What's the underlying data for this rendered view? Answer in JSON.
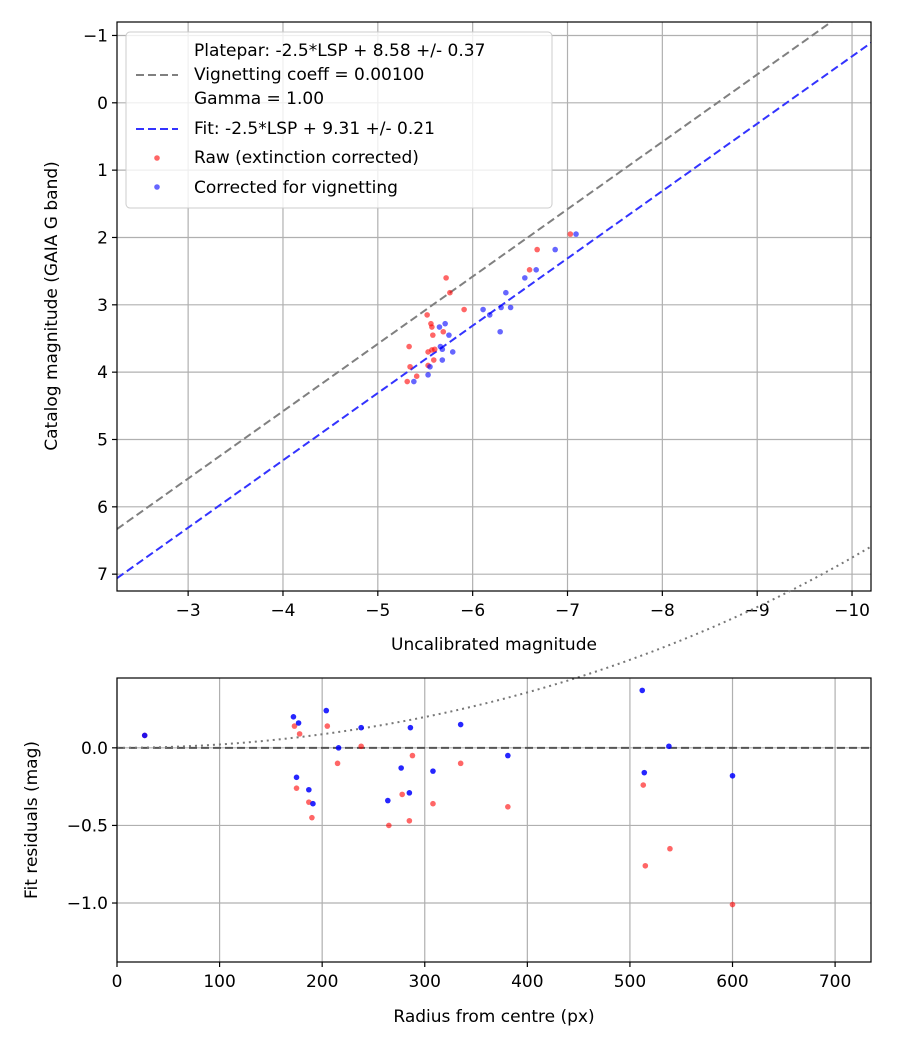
{
  "chart_data": [
    {
      "type": "scatter",
      "name": "magnitude-calibration",
      "xlabel": "Uncalibrated magnitude",
      "ylabel": "Catalog magnitude (GAIA G band)",
      "xlim": [
        -2.25,
        -10.2
      ],
      "ylim": [
        7.25,
        -1.2
      ],
      "x_inverted": true,
      "y_inverted": true,
      "grid": true,
      "xticks": [
        -3,
        -4,
        -5,
        -6,
        -7,
        -8,
        -9,
        -10
      ],
      "xtick_labels": [
        "−3",
        "−4",
        "−5",
        "−6",
        "−7",
        "−8",
        "−9",
        "−10"
      ],
      "yticks": [
        -1,
        0,
        1,
        2,
        3,
        4,
        5,
        6,
        7
      ],
      "ytick_labels": [
        "−1",
        "0",
        "1",
        "2",
        "3",
        "4",
        "5",
        "6",
        "7"
      ],
      "legend": {
        "position": "top-left",
        "entries": [
          {
            "label": "Platepar: -2.5*LSP + 8.58 +/- 0.37",
            "style": "none"
          },
          {
            "label": "Vignetting coeff = 0.00100",
            "style": "dashed-line",
            "color": "#808080"
          },
          {
            "label": "Gamma = 1.00",
            "style": "none"
          },
          {
            "label": "Fit: -2.5*LSP + 9.31 +/- 0.21",
            "style": "dashed-line",
            "color": "#3333ff"
          },
          {
            "label": "Raw (extinction corrected)",
            "style": "marker",
            "color": "#ff0000"
          },
          {
            "label": "Corrected for vignetting",
            "style": "marker",
            "color": "#0000ff"
          }
        ]
      },
      "lines": [
        {
          "name": "Platepar",
          "color": "#808080",
          "dash": "dashed",
          "slope": 1.0,
          "intercept": 8.58
        },
        {
          "name": "Fit",
          "color": "#3333ff",
          "dash": "dashed",
          "slope": 1.0,
          "intercept": 9.31
        }
      ],
      "series": [
        {
          "name": "Raw (extinction corrected)",
          "color": "#ff0000",
          "alpha": 0.6,
          "points": [
            {
              "x": -7.03,
              "y": 1.95
            },
            {
              "x": -6.68,
              "y": 2.18
            },
            {
              "x": -6.6,
              "y": 2.48
            },
            {
              "x": -5.72,
              "y": 2.6
            },
            {
              "x": -5.76,
              "y": 2.82
            },
            {
              "x": -5.91,
              "y": 3.07
            },
            {
              "x": -5.52,
              "y": 3.15
            },
            {
              "x": -5.56,
              "y": 3.28
            },
            {
              "x": -5.57,
              "y": 3.33
            },
            {
              "x": -5.69,
              "y": 3.4
            },
            {
              "x": -5.58,
              "y": 3.45
            },
            {
              "x": -5.33,
              "y": 3.62
            },
            {
              "x": -5.57,
              "y": 3.67
            },
            {
              "x": -5.6,
              "y": 3.66
            },
            {
              "x": -5.53,
              "y": 3.7
            },
            {
              "x": -5.59,
              "y": 3.82
            },
            {
              "x": -5.34,
              "y": 3.92
            },
            {
              "x": -5.53,
              "y": 3.9
            },
            {
              "x": -5.41,
              "y": 4.06
            },
            {
              "x": -5.31,
              "y": 4.14
            }
          ]
        },
        {
          "name": "Corrected for vignetting",
          "color": "#0000ff",
          "alpha": 0.6,
          "points": [
            {
              "x": -7.09,
              "y": 1.95
            },
            {
              "x": -6.87,
              "y": 2.18
            },
            {
              "x": -6.67,
              "y": 2.48
            },
            {
              "x": -6.55,
              "y": 2.6
            },
            {
              "x": -6.35,
              "y": 2.82
            },
            {
              "x": -6.11,
              "y": 3.07
            },
            {
              "x": -6.18,
              "y": 3.15
            },
            {
              "x": -6.3,
              "y": 3.04
            },
            {
              "x": -6.4,
              "y": 3.04
            },
            {
              "x": -5.71,
              "y": 3.28
            },
            {
              "x": -5.65,
              "y": 3.33
            },
            {
              "x": -6.29,
              "y": 3.4
            },
            {
              "x": -5.75,
              "y": 3.45
            },
            {
              "x": -5.66,
              "y": 3.62
            },
            {
              "x": -5.68,
              "y": 3.66
            },
            {
              "x": -5.79,
              "y": 3.7
            },
            {
              "x": -5.68,
              "y": 3.82
            },
            {
              "x": -5.55,
              "y": 3.92
            },
            {
              "x": -5.53,
              "y": 4.04
            },
            {
              "x": -5.38,
              "y": 4.14
            }
          ]
        }
      ]
    },
    {
      "type": "scatter",
      "name": "fit-residuals",
      "xlabel": "Radius from centre (px)",
      "ylabel": "Fit residuals (mag)",
      "xlim": [
        0,
        735
      ],
      "ylim": [
        -1.38,
        0.45
      ],
      "grid": true,
      "xticks": [
        0,
        100,
        200,
        300,
        400,
        500,
        600,
        700
      ],
      "xtick_labels": [
        "0",
        "100",
        "200",
        "300",
        "400",
        "500",
        "600",
        "700"
      ],
      "yticks": [
        0.0,
        -0.5,
        -1.0
      ],
      "ytick_labels": [
        "0.0",
        "−0.5",
        "−1.0"
      ],
      "lines": [
        {
          "name": "zero",
          "color": "#555555",
          "dash": "dashed",
          "formula": "y = 0"
        },
        {
          "name": "vignetting model",
          "color": "#777777",
          "dash": "dotted",
          "formula": "y = -2.5*log10(cos(0.001*r)^4)"
        }
      ],
      "series": [
        {
          "name": "Raw",
          "color": "#ff0000",
          "alpha": 0.6,
          "points": [
            {
              "x": 27,
              "y": 0.08
            },
            {
              "x": 173,
              "y": 0.14
            },
            {
              "x": 178,
              "y": 0.09
            },
            {
              "x": 175,
              "y": -0.26
            },
            {
              "x": 187,
              "y": -0.35
            },
            {
              "x": 190,
              "y": -0.45
            },
            {
              "x": 205,
              "y": 0.14
            },
            {
              "x": 215,
              "y": -0.1
            },
            {
              "x": 238,
              "y": 0.01
            },
            {
              "x": 265,
              "y": -0.5
            },
            {
              "x": 278,
              "y": -0.3
            },
            {
              "x": 285,
              "y": -0.47
            },
            {
              "x": 288,
              "y": -0.05
            },
            {
              "x": 308,
              "y": -0.36
            },
            {
              "x": 335,
              "y": -0.1
            },
            {
              "x": 381,
              "y": -0.38
            },
            {
              "x": 513,
              "y": -0.24
            },
            {
              "x": 515,
              "y": -0.76
            },
            {
              "x": 539,
              "y": -0.65
            },
            {
              "x": 600,
              "y": -1.01
            }
          ]
        },
        {
          "name": "Corrected",
          "color": "#0000ff",
          "alpha": 0.85,
          "points": [
            {
              "x": 27,
              "y": 0.08
            },
            {
              "x": 172,
              "y": 0.2
            },
            {
              "x": 177,
              "y": 0.16
            },
            {
              "x": 175,
              "y": -0.19
            },
            {
              "x": 187,
              "y": -0.27
            },
            {
              "x": 191,
              "y": -0.36
            },
            {
              "x": 204,
              "y": 0.24
            },
            {
              "x": 216,
              "y": 0.0
            },
            {
              "x": 238,
              "y": 0.13
            },
            {
              "x": 264,
              "y": -0.34
            },
            {
              "x": 277,
              "y": -0.13
            },
            {
              "x": 285,
              "y": -0.29
            },
            {
              "x": 286,
              "y": 0.13
            },
            {
              "x": 308,
              "y": -0.15
            },
            {
              "x": 335,
              "y": 0.15
            },
            {
              "x": 381,
              "y": -0.05
            },
            {
              "x": 512,
              "y": 0.37
            },
            {
              "x": 514,
              "y": -0.16
            },
            {
              "x": 538,
              "y": 0.01
            },
            {
              "x": 600,
              "y": -0.18
            }
          ]
        }
      ]
    }
  ]
}
